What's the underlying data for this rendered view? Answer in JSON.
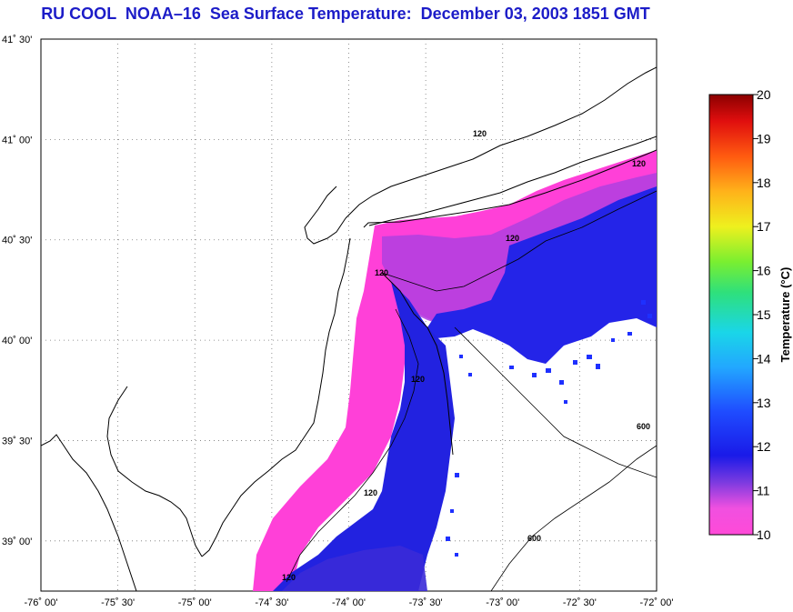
{
  "title": "RU COOL  NOAA–16  Sea Surface Temperature:  December 03, 2003 1851 GMT",
  "map": {
    "lat_ticks": [
      "41˚ 30'",
      "41˚ 00'",
      "40˚ 30'",
      "40˚ 00'",
      "39˚ 30'",
      "39˚ 00'"
    ],
    "lon_ticks": [
      "-76˚ 00'",
      "-75˚ 30'",
      "-75˚ 00'",
      "-74˚ 30'",
      "-74˚ 00'",
      "-73˚ 30'",
      "-73˚ 00'",
      "-72˚ 30'",
      "-72˚ 00'"
    ],
    "lat_range": [
      38.75,
      41.5
    ],
    "lon_range": [
      -76.0,
      -72.0
    ],
    "grid": "dotted",
    "contour_labels": [
      "120",
      "120",
      "120",
      "120",
      "120",
      "120",
      "120",
      "600",
      "600"
    ]
  },
  "colorbar": {
    "title": "Temperature (°C)",
    "ticks": [
      "20",
      "19",
      "18",
      "17",
      "16",
      "15",
      "14",
      "13",
      "12",
      "11",
      "10"
    ],
    "min": 10,
    "max": 20
  }
}
